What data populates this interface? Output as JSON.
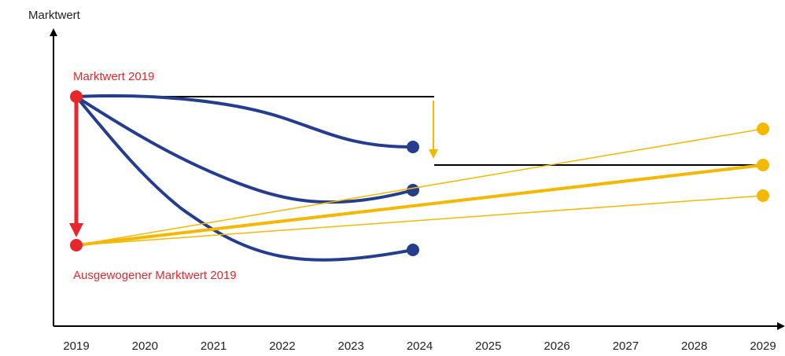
{
  "y_axis": {
    "label": "Marktwert"
  },
  "x_axis": {
    "labels": [
      "2019",
      "2020",
      "2021",
      "2022",
      "2023",
      "2024",
      "2025",
      "2026",
      "2027",
      "2028",
      "2029"
    ]
  },
  "annotations": {
    "top": "Marktwert 2019",
    "bottom": "Ausgewogener Marktwert 2019"
  }
}
